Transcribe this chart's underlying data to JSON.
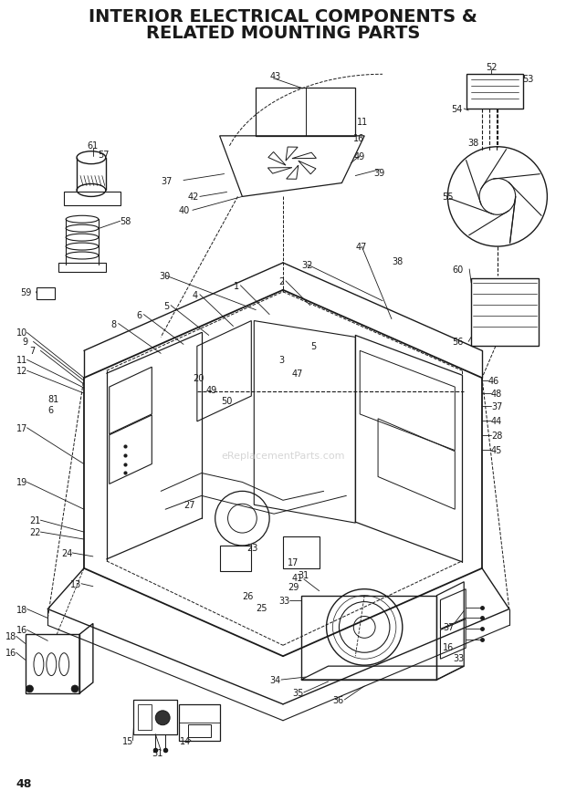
{
  "title_line1": "INTERIOR ELECTRICAL COMPONENTS &",
  "title_line2": "RELATED MOUNTING PARTS",
  "page_number": "48",
  "bg": "#ffffff",
  "lc": "#1a1a1a",
  "gray": "#888888",
  "title_fs": 14,
  "fig_width": 6.2,
  "fig_height": 8.79,
  "dpi": 100,
  "watermark": "eReplacementParts.com"
}
